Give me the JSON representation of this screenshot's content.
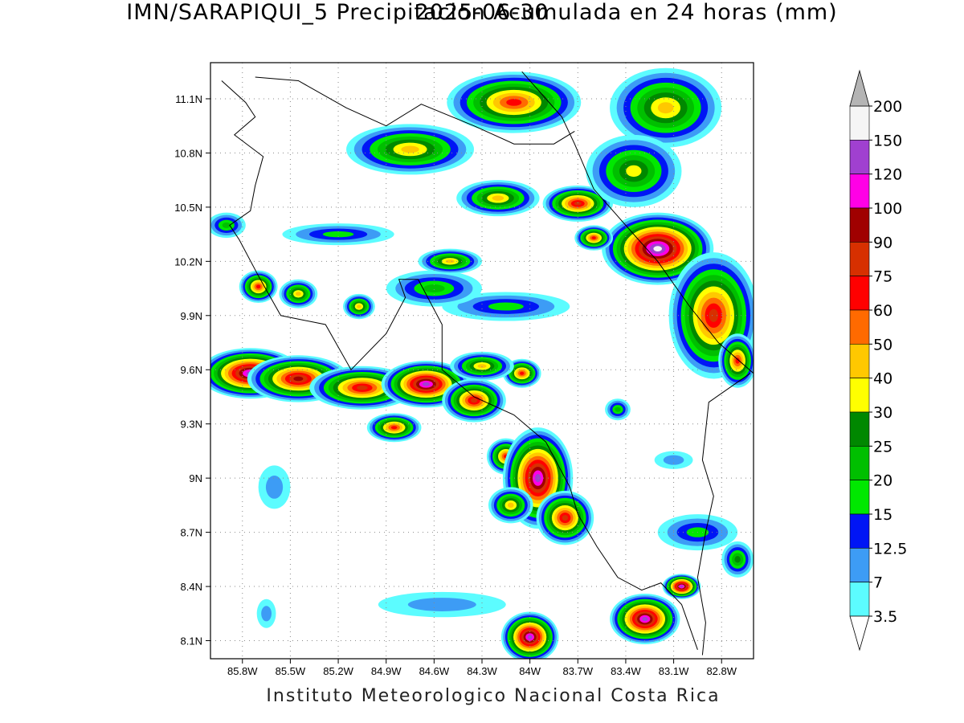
{
  "title": "IMN/SARAPIQUI_5 Precipitacion Acumulada en 24 horas (mm)",
  "date": "2025-06-30",
  "credit": "Instituto Meteorologico Nacional Costa Rica",
  "map": {
    "lon_range": [
      -86.0,
      -82.6
    ],
    "lat_range": [
      8.0,
      11.3
    ],
    "lon_ticks": [
      {
        "value": -85.8,
        "label": "85.8W"
      },
      {
        "value": -85.5,
        "label": "85.5W"
      },
      {
        "value": -85.2,
        "label": "85.2W"
      },
      {
        "value": -84.9,
        "label": "84.9W"
      },
      {
        "value": -84.6,
        "label": "84.6W"
      },
      {
        "value": -84.3,
        "label": "84.3W"
      },
      {
        "value": -84.0,
        "label": "84W"
      },
      {
        "value": -83.7,
        "label": "83.7W"
      },
      {
        "value": -83.4,
        "label": "83.4W"
      },
      {
        "value": -83.1,
        "label": "83.1W"
      },
      {
        "value": -82.8,
        "label": "82.8W"
      }
    ],
    "lat_ticks": [
      {
        "value": 11.1,
        "label": "11.1N"
      },
      {
        "value": 10.8,
        "label": "10.8N"
      },
      {
        "value": 10.5,
        "label": "10.5N"
      },
      {
        "value": 10.2,
        "label": "10.2N"
      },
      {
        "value": 9.9,
        "label": "9.9N"
      },
      {
        "value": 9.6,
        "label": "9.6N"
      },
      {
        "value": 9.3,
        "label": "9.3N"
      },
      {
        "value": 9.0,
        "label": "9N"
      },
      {
        "value": 8.7,
        "label": "8.7N"
      },
      {
        "value": 8.4,
        "label": "8.4N"
      },
      {
        "value": 8.1,
        "label": "8.1N"
      }
    ],
    "grid": true,
    "rain_cells": [
      {
        "lon": -85.75,
        "lat": 9.58,
        "r_lon": 0.32,
        "r_lat": 0.14,
        "peak": 120
      },
      {
        "lon": -85.45,
        "lat": 9.55,
        "r_lon": 0.32,
        "r_lat": 0.13,
        "peak": 90
      },
      {
        "lon": -85.05,
        "lat": 9.5,
        "r_lon": 0.33,
        "r_lat": 0.12,
        "peak": 75
      },
      {
        "lon": -84.65,
        "lat": 9.52,
        "r_lon": 0.28,
        "r_lat": 0.13,
        "peak": 120
      },
      {
        "lon": -84.35,
        "lat": 9.43,
        "r_lon": 0.2,
        "r_lat": 0.12,
        "peak": 75
      },
      {
        "lon": -84.85,
        "lat": 9.28,
        "r_lon": 0.17,
        "r_lat": 0.08,
        "peak": 60
      },
      {
        "lon": -84.05,
        "lat": 9.58,
        "r_lon": 0.12,
        "r_lat": 0.08,
        "peak": 60
      },
      {
        "lon": -84.3,
        "lat": 9.62,
        "r_lon": 0.2,
        "r_lat": 0.08,
        "peak": 40
      },
      {
        "lon": -84.15,
        "lat": 9.12,
        "r_lon": 0.12,
        "r_lat": 0.1,
        "peak": 60
      },
      {
        "lon": -83.95,
        "lat": 9.0,
        "r_lon": 0.22,
        "r_lat": 0.28,
        "peak": 120
      },
      {
        "lon": -83.78,
        "lat": 8.78,
        "r_lon": 0.18,
        "r_lat": 0.15,
        "peak": 75
      },
      {
        "lon": -84.12,
        "lat": 8.85,
        "r_lon": 0.14,
        "r_lat": 0.1,
        "peak": 40
      },
      {
        "lon": -84.0,
        "lat": 8.12,
        "r_lon": 0.18,
        "r_lat": 0.14,
        "peak": 120
      },
      {
        "lon": -83.28,
        "lat": 8.22,
        "r_lon": 0.22,
        "r_lat": 0.14,
        "peak": 120
      },
      {
        "lon": -83.05,
        "lat": 8.4,
        "r_lon": 0.12,
        "r_lat": 0.07,
        "peak": 120
      },
      {
        "lon": -83.2,
        "lat": 10.27,
        "r_lon": 0.35,
        "r_lat": 0.2,
        "peak": 150
      },
      {
        "lon": -82.85,
        "lat": 9.9,
        "r_lon": 0.28,
        "r_lat": 0.35,
        "peak": 75
      },
      {
        "lon": -82.7,
        "lat": 9.65,
        "r_lon": 0.12,
        "r_lat": 0.15,
        "peak": 60
      },
      {
        "lon": -83.7,
        "lat": 10.52,
        "r_lon": 0.22,
        "r_lat": 0.1,
        "peak": 75
      },
      {
        "lon": -83.6,
        "lat": 10.33,
        "r_lon": 0.12,
        "r_lat": 0.07,
        "peak": 60
      },
      {
        "lon": -84.1,
        "lat": 11.08,
        "r_lon": 0.42,
        "r_lat": 0.17,
        "peak": 60
      },
      {
        "lon": -84.75,
        "lat": 10.82,
        "r_lon": 0.4,
        "r_lat": 0.14,
        "peak": 40
      },
      {
        "lon": -84.2,
        "lat": 10.55,
        "r_lon": 0.26,
        "r_lat": 0.1,
        "peak": 40
      },
      {
        "lon": -83.15,
        "lat": 11.05,
        "r_lon": 0.35,
        "r_lat": 0.22,
        "peak": 40
      },
      {
        "lon": -83.35,
        "lat": 10.7,
        "r_lon": 0.3,
        "r_lat": 0.2,
        "peak": 30
      },
      {
        "lon": -84.15,
        "lat": 9.95,
        "r_lon": 0.4,
        "r_lat": 0.08,
        "peak": 15
      },
      {
        "lon": -84.6,
        "lat": 10.05,
        "r_lon": 0.3,
        "r_lat": 0.1,
        "peak": 20
      },
      {
        "lon": -84.5,
        "lat": 10.2,
        "r_lon": 0.2,
        "r_lat": 0.07,
        "peak": 40
      },
      {
        "lon": -85.7,
        "lat": 10.06,
        "r_lon": 0.12,
        "r_lat": 0.09,
        "peak": 60
      },
      {
        "lon": -85.45,
        "lat": 10.02,
        "r_lon": 0.12,
        "r_lat": 0.08,
        "peak": 40
      },
      {
        "lon": -85.07,
        "lat": 9.95,
        "r_lon": 0.1,
        "r_lat": 0.07,
        "peak": 40
      },
      {
        "lon": -85.9,
        "lat": 10.4,
        "r_lon": 0.12,
        "r_lat": 0.07,
        "peak": 20
      },
      {
        "lon": -85.2,
        "lat": 10.35,
        "r_lon": 0.35,
        "r_lat": 0.06,
        "peak": 15
      },
      {
        "lon": -83.1,
        "lat": 9.1,
        "r_lon": 0.12,
        "r_lat": 0.05,
        "peak": 7
      },
      {
        "lon": -82.95,
        "lat": 8.7,
        "r_lon": 0.25,
        "r_lat": 0.1,
        "peak": 15
      },
      {
        "lon": -82.7,
        "lat": 8.55,
        "r_lon": 0.1,
        "r_lat": 0.1,
        "peak": 25
      },
      {
        "lon": -83.45,
        "lat": 9.38,
        "r_lon": 0.08,
        "r_lat": 0.06,
        "peak": 20
      },
      {
        "lon": -85.6,
        "lat": 8.95,
        "r_lon": 0.1,
        "r_lat": 0.12,
        "peak": 7
      },
      {
        "lon": -84.55,
        "lat": 8.3,
        "r_lon": 0.4,
        "r_lat": 0.07,
        "peak": 7
      },
      {
        "lon": -85.65,
        "lat": 8.25,
        "r_lon": 0.06,
        "r_lat": 0.08,
        "peak": 7
      }
    ],
    "coast_pacific": [
      [
        -85.93,
        11.2
      ],
      [
        -85.78,
        11.08
      ],
      [
        -85.72,
        11.0
      ],
      [
        -85.85,
        10.9
      ],
      [
        -85.67,
        10.78
      ],
      [
        -85.72,
        10.62
      ],
      [
        -85.75,
        10.48
      ],
      [
        -85.88,
        10.4
      ],
      [
        -85.82,
        10.32
      ],
      [
        -85.7,
        10.12
      ],
      [
        -85.56,
        9.9
      ],
      [
        -85.28,
        9.85
      ],
      [
        -85.12,
        9.6
      ],
      [
        -84.9,
        9.8
      ],
      [
        -84.78,
        10.0
      ],
      [
        -84.82,
        10.1
      ],
      [
        -84.7,
        10.1
      ],
      [
        -84.55,
        9.85
      ],
      [
        -84.55,
        9.6
      ],
      [
        -84.35,
        9.45
      ],
      [
        -84.1,
        9.35
      ],
      [
        -83.9,
        9.2
      ],
      [
        -83.75,
        8.95
      ],
      [
        -83.7,
        8.8
      ],
      [
        -83.58,
        8.62
      ],
      [
        -83.45,
        8.45
      ],
      [
        -83.3,
        8.38
      ],
      [
        -83.18,
        8.42
      ],
      [
        -83.05,
        8.3
      ],
      [
        -82.95,
        8.05
      ]
    ],
    "coast_caribbean": [
      [
        -84.05,
        11.25
      ],
      [
        -83.8,
        11.0
      ],
      [
        -83.72,
        10.85
      ],
      [
        -83.6,
        10.6
      ],
      [
        -83.4,
        10.4
      ],
      [
        -83.2,
        10.2
      ],
      [
        -83.0,
        9.95
      ],
      [
        -82.82,
        9.75
      ],
      [
        -82.6,
        9.58
      ]
    ],
    "border_nicaragua": [
      [
        -85.72,
        11.22
      ],
      [
        -85.45,
        11.2
      ],
      [
        -85.15,
        11.05
      ],
      [
        -84.9,
        10.95
      ],
      [
        -84.68,
        11.07
      ],
      [
        -84.35,
        10.95
      ],
      [
        -84.1,
        10.85
      ],
      [
        -83.85,
        10.85
      ],
      [
        -83.72,
        10.92
      ]
    ],
    "border_panama": [
      [
        -82.62,
        9.58
      ],
      [
        -82.88,
        9.42
      ],
      [
        -82.92,
        9.1
      ],
      [
        -82.85,
        8.9
      ],
      [
        -82.9,
        8.7
      ],
      [
        -82.95,
        8.45
      ],
      [
        -82.9,
        8.2
      ],
      [
        -82.92,
        8.02
      ]
    ]
  },
  "colorbar": {
    "colors": [
      "#ffffff",
      "#5cfcff",
      "#3d9cf5",
      "#0015f5",
      "#00e800",
      "#00bf00",
      "#008800",
      "#ffff00",
      "#ffc800",
      "#ff6a00",
      "#ff0000",
      "#d73000",
      "#a00000",
      "#ff00e6",
      "#a040d0",
      "#f5f5f5",
      "#b4b4b4"
    ],
    "labels": [
      "3.5",
      "7",
      "12.5",
      "15",
      "20",
      "25",
      "30",
      "40",
      "50",
      "60",
      "75",
      "90",
      "100",
      "120",
      "150",
      "200"
    ],
    "thresholds": [
      3.5,
      7,
      12.5,
      15,
      20,
      25,
      30,
      40,
      50,
      60,
      75,
      90,
      100,
      120,
      150,
      200
    ]
  }
}
